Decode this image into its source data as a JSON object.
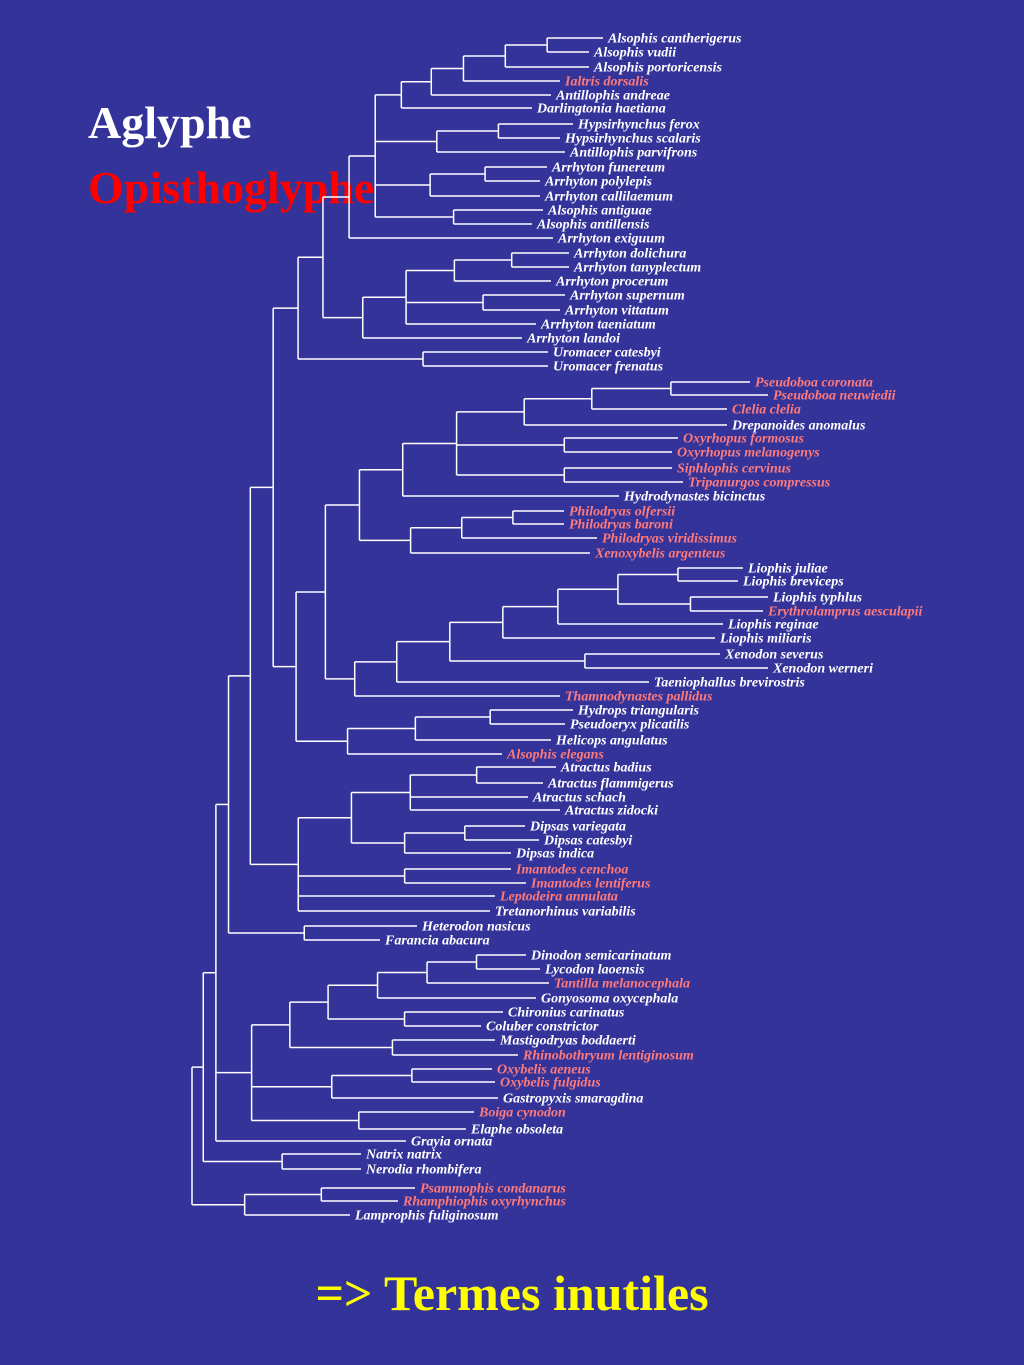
{
  "legend": {
    "aglyphe": "Aglyphe",
    "opisthoglyphe": "Opisthoglyphe",
    "aglyphe_color": "#ffffff",
    "opisthoglyphe_color": "#ff0000",
    "opisthoglyphe_taxon_color": "#ff7a7a"
  },
  "conclusion": {
    "text": "=> Termes inutiles",
    "color": "#ffff00"
  },
  "background_color": "#33339a",
  "line_color": "#ffffff",
  "taxa": [
    {
      "name": "Alsophis cantherigerus",
      "opisthoglyph": false
    },
    {
      "name": "Alsophis vudii",
      "opisthoglyph": false
    },
    {
      "name": "Alsophis portoricensis",
      "opisthoglyph": false
    },
    {
      "name": "Ialtris dorsalis",
      "opisthoglyph": true
    },
    {
      "name": "Antillophis andreae",
      "opisthoglyph": false
    },
    {
      "name": "Darlingtonia haetiana",
      "opisthoglyph": false
    },
    {
      "name": "Hypsirhynchus ferox",
      "opisthoglyph": false
    },
    {
      "name": "Hypsirhynchus scalaris",
      "opisthoglyph": false
    },
    {
      "name": "Antillophis parvifrons",
      "opisthoglyph": false
    },
    {
      "name": "Arrhyton funereum",
      "opisthoglyph": false
    },
    {
      "name": "Arrhyton polylepis",
      "opisthoglyph": false
    },
    {
      "name": "Arrhyton callilaemum",
      "opisthoglyph": false
    },
    {
      "name": "Alsophis antiguae",
      "opisthoglyph": false
    },
    {
      "name": "Alsophis antillensis",
      "opisthoglyph": false
    },
    {
      "name": "Arrhyton exiguum",
      "opisthoglyph": false
    },
    {
      "name": "Arrhyton dolichura",
      "opisthoglyph": false
    },
    {
      "name": "Arrhyton tanyplectum",
      "opisthoglyph": false
    },
    {
      "name": "Arrhyton procerum",
      "opisthoglyph": false
    },
    {
      "name": "Arrhyton supernum",
      "opisthoglyph": false
    },
    {
      "name": "Arrhyton vittatum",
      "opisthoglyph": false
    },
    {
      "name": "Arrhyton taeniatum",
      "opisthoglyph": false
    },
    {
      "name": "Arrhyton landoi",
      "opisthoglyph": false
    },
    {
      "name": "Uromacer catesbyi",
      "opisthoglyph": false
    },
    {
      "name": "Uromacer frenatus",
      "opisthoglyph": false
    },
    {
      "name": "Pseudoboa coronata",
      "opisthoglyph": true
    },
    {
      "name": "Pseudoboa neuwiedii",
      "opisthoglyph": true
    },
    {
      "name": "Clelia clelia",
      "opisthoglyph": true
    },
    {
      "name": "Drepanoides anomalus",
      "opisthoglyph": false
    },
    {
      "name": "Oxyrhopus formosus",
      "opisthoglyph": true
    },
    {
      "name": "Oxyrhopus melanogenys",
      "opisthoglyph": true
    },
    {
      "name": "Siphlophis cervinus",
      "opisthoglyph": true
    },
    {
      "name": "Tripanurgos compressus",
      "opisthoglyph": true
    },
    {
      "name": "Hydrodynastes bicinctus",
      "opisthoglyph": false
    },
    {
      "name": "Philodryas olfersii",
      "opisthoglyph": true
    },
    {
      "name": "Philodryas baroni",
      "opisthoglyph": true
    },
    {
      "name": "Philodryas viridissimus",
      "opisthoglyph": true
    },
    {
      "name": "Xenoxybelis argenteus",
      "opisthoglyph": true
    },
    {
      "name": "Liophis juliae",
      "opisthoglyph": false
    },
    {
      "name": "Liophis breviceps",
      "opisthoglyph": false
    },
    {
      "name": "Liophis typhlus",
      "opisthoglyph": false
    },
    {
      "name": "Erythrolamprus aesculapii",
      "opisthoglyph": true
    },
    {
      "name": "Liophis reginae",
      "opisthoglyph": false
    },
    {
      "name": "Liophis miliaris",
      "opisthoglyph": false
    },
    {
      "name": "Xenodon severus",
      "opisthoglyph": false
    },
    {
      "name": "Xenodon werneri",
      "opisthoglyph": false
    },
    {
      "name": "Taeniophallus brevirostris",
      "opisthoglyph": false
    },
    {
      "name": "Thamnodynastes pallidus",
      "opisthoglyph": true
    },
    {
      "name": "Hydrops triangularis",
      "opisthoglyph": false
    },
    {
      "name": "Pseudoeryx plicatilis",
      "opisthoglyph": false
    },
    {
      "name": "Helicops angulatus",
      "opisthoglyph": false
    },
    {
      "name": "Alsophis elegans",
      "opisthoglyph": true
    },
    {
      "name": "Atractus badius",
      "opisthoglyph": false
    },
    {
      "name": "Atractus flammigerus",
      "opisthoglyph": false
    },
    {
      "name": "Atractus schach",
      "opisthoglyph": false
    },
    {
      "name": "Atractus zidocki",
      "opisthoglyph": false
    },
    {
      "name": "Dipsas variegata",
      "opisthoglyph": false
    },
    {
      "name": "Dipsas catesbyi",
      "opisthoglyph": false
    },
    {
      "name": "Dipsas indica",
      "opisthoglyph": false
    },
    {
      "name": "Imantodes cenchoa",
      "opisthoglyph": true
    },
    {
      "name": "Imantodes lentiferus",
      "opisthoglyph": true
    },
    {
      "name": "Leptodeira annulata",
      "opisthoglyph": true
    },
    {
      "name": "Tretanorhinus variabilis",
      "opisthoglyph": false
    },
    {
      "name": "Heterodon nasicus",
      "opisthoglyph": false
    },
    {
      "name": "Farancia abacura",
      "opisthoglyph": false
    },
    {
      "name": "Dinodon semicarinatum",
      "opisthoglyph": false
    },
    {
      "name": "Lycodon laoensis",
      "opisthoglyph": false
    },
    {
      "name": "Tantilla melanocephala",
      "opisthoglyph": true
    },
    {
      "name": "Gonyosoma oxycephala",
      "opisthoglyph": false
    },
    {
      "name": "Chironius carinatus",
      "opisthoglyph": false
    },
    {
      "name": "Coluber constrictor",
      "opisthoglyph": false
    },
    {
      "name": "Mastigodryas boddaerti",
      "opisthoglyph": false
    },
    {
      "name": "Rhinobothryum lentiginosum",
      "opisthoglyph": true
    },
    {
      "name": "Oxybelis aeneus",
      "opisthoglyph": true
    },
    {
      "name": "Oxybelis fulgidus",
      "opisthoglyph": true
    },
    {
      "name": "Gastropyxis smaragdina",
      "opisthoglyph": false
    },
    {
      "name": "Boiga cynodon",
      "opisthoglyph": true
    },
    {
      "name": "Elaphe obsoleta",
      "opisthoglyph": false
    },
    {
      "name": "Grayia ornata",
      "opisthoglyph": false
    },
    {
      "name": "Natrix natrix",
      "opisthoglyph": false
    },
    {
      "name": "Nerodia rhombifera",
      "opisthoglyph": false
    },
    {
      "name": "Psammophis condanarus",
      "opisthoglyph": true
    },
    {
      "name": "Rhamphiophis oxyrhynchus",
      "opisthoglyph": true
    },
    {
      "name": "Lamprophis fuliginosum",
      "opisthoglyph": false
    }
  ]
}
